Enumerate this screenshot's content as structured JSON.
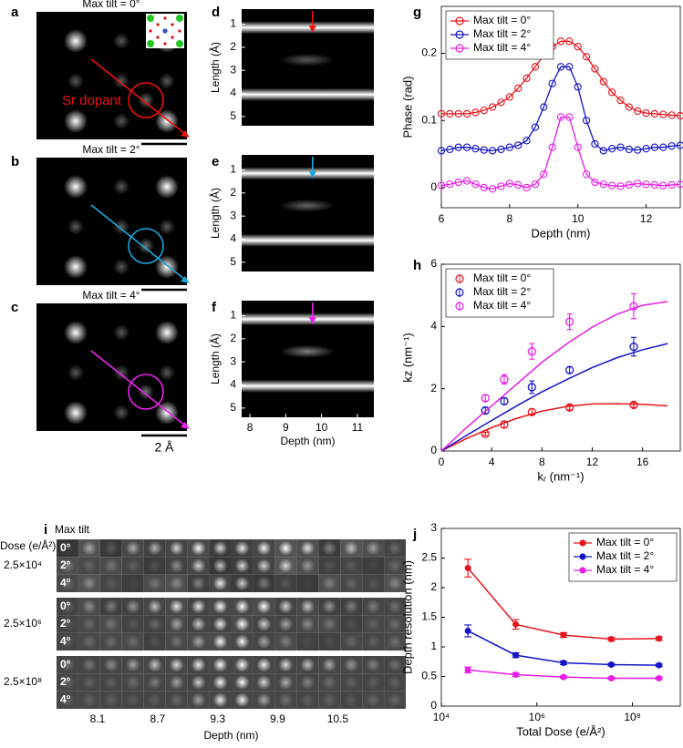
{
  "panels": {
    "letters": [
      "a",
      "b",
      "c",
      "d",
      "e",
      "f",
      "g",
      "h",
      "i",
      "j"
    ],
    "atom_images": {
      "titles": [
        "Max tilt = 0°",
        "Max tilt = 2°",
        "Max tilt = 4°"
      ],
      "annotation": "Sr dopant",
      "scale_label": "2 Å",
      "colors": [
        "#ee1111",
        "#1aa8e0",
        "#ee22ee"
      ]
    },
    "line_profiles": {
      "ylabel": "Length (Å)",
      "yticks": [
        1,
        2,
        3,
        4,
        5
      ],
      "ylim": [
        0.35,
        5.4
      ],
      "xticks": [
        8,
        9,
        10,
        11
      ],
      "xlim": [
        7.77,
        11.46
      ],
      "xlabel": "Depth (nm)"
    },
    "tilt_series": {
      "title": "Max tilt",
      "dose_label": "Dose (e/Å²)",
      "doses": [
        "2.5×10⁴",
        "2.5×10⁶",
        "2.5×10⁸"
      ],
      "tilts": [
        "0°",
        "2°",
        "4°"
      ],
      "xticks": [
        8.1,
        8.7,
        9.3,
        9.9,
        10.5
      ],
      "xlabel": "Depth (nm)"
    }
  },
  "chart_data": [
    {
      "type": "line",
      "xlabel": "Depth (nm)",
      "ylabel": "Phase (rad)",
      "x": [
        6,
        6.25,
        6.5,
        6.75,
        7,
        7.25,
        7.5,
        7.75,
        8,
        8.25,
        8.5,
        8.75,
        9,
        9.25,
        9.5,
        9.75,
        10,
        10.25,
        10.5,
        10.75,
        11,
        11.25,
        11.5,
        11.75,
        12,
        12.25,
        12.5,
        12.75,
        13
      ],
      "xlim": [
        6,
        13
      ],
      "xticks": [
        6,
        8,
        10,
        12
      ],
      "ylim": [
        -0.03,
        0.27
      ],
      "yticks": [
        0,
        0.1,
        0.2
      ],
      "legend": "upper left",
      "series": [
        {
          "name": "Max tilt = 0°",
          "color": "#e8141c",
          "values": [
            0.11,
            0.11,
            0.11,
            0.11,
            0.112,
            0.115,
            0.12,
            0.127,
            0.135,
            0.148,
            0.163,
            0.18,
            0.197,
            0.21,
            0.218,
            0.218,
            0.21,
            0.195,
            0.177,
            0.158,
            0.142,
            0.13,
            0.12,
            0.114,
            0.111,
            0.11,
            0.109,
            0.108,
            0.107
          ]
        },
        {
          "name": "Max tilt = 2°",
          "color": "#1414c8",
          "values": [
            0.055,
            0.057,
            0.06,
            0.06,
            0.058,
            0.056,
            0.055,
            0.057,
            0.06,
            0.063,
            0.07,
            0.09,
            0.12,
            0.155,
            0.18,
            0.18,
            0.15,
            0.1,
            0.065,
            0.055,
            0.058,
            0.06,
            0.057,
            0.056,
            0.058,
            0.06,
            0.06,
            0.062,
            0.063
          ]
        },
        {
          "name": "Max tilt = 4°",
          "color": "#e61ee6",
          "values": [
            0.003,
            0.005,
            0.008,
            0.01,
            0.005,
            0,
            -0.002,
            0.002,
            0.006,
            0.004,
            0,
            0.005,
            0.02,
            0.06,
            0.105,
            0.105,
            0.06,
            0.02,
            0.008,
            0.005,
            0.003,
            0.002,
            0.004,
            0.006,
            0.005,
            0.004,
            0.003,
            0.004,
            0.005
          ]
        }
      ]
    },
    {
      "type": "scatter",
      "xlabel": "kᵣ (nm⁻¹)",
      "ylabel": "kz (nm⁻¹)",
      "x": [
        3.5,
        5,
        7.2,
        10.2,
        15.3
      ],
      "xlim": [
        0,
        19
      ],
      "xticks": [
        0,
        4,
        8,
        12,
        16
      ],
      "ylim": [
        0,
        6
      ],
      "yticks": [
        0,
        2,
        4,
        6
      ],
      "legend": "upper left",
      "fit_x": [
        0,
        2,
        4,
        6,
        8,
        10,
        12,
        14,
        16,
        18
      ],
      "series": [
        {
          "name": "Max tilt = 0°",
          "color": "#e8141c",
          "values": [
            0.55,
            0.85,
            1.25,
            1.4,
            1.48
          ],
          "errors": [
            0.05,
            0.1,
            0.1,
            0.08,
            0.08
          ],
          "fit": [
            0,
            0.4,
            0.75,
            1.05,
            1.28,
            1.43,
            1.51,
            1.52,
            1.5,
            1.45
          ]
        },
        {
          "name": "Max tilt = 2°",
          "color": "#1414c8",
          "values": [
            1.3,
            1.6,
            2.05,
            2.6,
            3.35
          ],
          "errors": [
            0.1,
            0.1,
            0.2,
            0.1,
            0.3
          ],
          "fit": [
            0,
            0.5,
            0.98,
            1.45,
            1.9,
            2.3,
            2.68,
            3,
            3.25,
            3.45
          ]
        },
        {
          "name": "Max tilt = 4°",
          "color": "#e61ee6",
          "values": [
            1.7,
            2.3,
            3.2,
            4.15,
            4.65
          ],
          "errors": [
            0.1,
            0.15,
            0.25,
            0.25,
            0.4
          ],
          "fit": [
            0,
            0.75,
            1.45,
            2.15,
            2.85,
            3.45,
            3.98,
            4.4,
            4.68,
            4.8
          ]
        }
      ]
    },
    {
      "type": "errorbar",
      "xlabel": "Total Dose (e/Å²)",
      "ylabel": "Depth resolution (nm)",
      "xscale": "log",
      "x": [
        36000,
        360000,
        3600000,
        36000000,
        360000000
      ],
      "xlim": [
        10000,
        1000000000
      ],
      "xticks": [
        {
          "value": 10000,
          "label": "10⁴"
        },
        {
          "value": 1000000,
          "label": "10⁶"
        },
        {
          "value": 100000000,
          "label": "10⁸"
        }
      ],
      "ylim": [
        0,
        3
      ],
      "yticks": [
        0,
        0.5,
        1,
        1.5,
        2,
        2.5,
        3
      ],
      "legend": "upper right",
      "series": [
        {
          "name": "Max tilt = 0°",
          "color": "#e8141c",
          "values": [
            2.33,
            1.38,
            1.2,
            1.13,
            1.14
          ],
          "errors": [
            0.15,
            0.08,
            0.04,
            0.03,
            0.03
          ]
        },
        {
          "name": "Max tilt = 2°",
          "color": "#1414c8",
          "values": [
            1.27,
            0.86,
            0.73,
            0.7,
            0.69
          ],
          "errors": [
            0.1,
            0.04,
            0.03,
            0.02,
            0.02
          ]
        },
        {
          "name": "Max tilt = 4°",
          "color": "#e61ee6",
          "values": [
            0.61,
            0.53,
            0.49,
            0.47,
            0.47
          ],
          "errors": [
            0.05,
            0.03,
            0.02,
            0.02,
            0.02
          ]
        }
      ]
    }
  ]
}
